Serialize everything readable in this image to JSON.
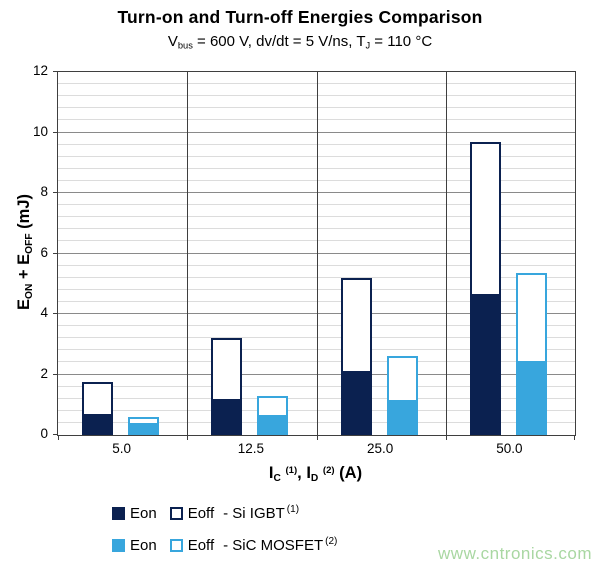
{
  "title": "Turn-on and Turn-off Energies Comparison",
  "subtitle": {
    "p1": "V",
    "sub1": "bus",
    "p2": " = 600 V, dv/dt = 5 V/ns, T",
    "sub2": "J",
    "p3": " = 110 °C"
  },
  "y_axis": {
    "title": {
      "p1": "E",
      "sub1": "ON",
      "p2": " + E",
      "sub2": "OFF",
      "p3": " (mJ)"
    }
  },
  "x_axis": {
    "title": {
      "p1": "I",
      "sub1": "C",
      "sup1": "(1)",
      "p2": ", I",
      "sub2": "D",
      "sup2": "(2)",
      "p3": " (A)"
    }
  },
  "legend": {
    "rows": [
      {
        "eon": "Eon",
        "eoff": "Eoff",
        "device": "- Si IGBT",
        "sup": "(1)"
      },
      {
        "eon": "Eon",
        "eoff": "Eoff",
        "device": "- SiC MOSFET",
        "sup": "(2)"
      }
    ]
  },
  "watermark": "www.cntronics.com",
  "colors": {
    "navy": "#0b2150",
    "blue": "#38a6dd",
    "major_grid": "#8a8a8a",
    "minor_grid": "#dcdcdc",
    "frame": "#3f3f3f",
    "watermark_green": "#a9d7a2"
  },
  "chart_data": {
    "type": "bar",
    "subtype": "grouped-stacked",
    "title": "Turn-on and Turn-off Energies Comparison",
    "subtitle_text": "Vbus = 600 V, dv/dt = 5 V/ns, TJ = 110 °C",
    "xlabel": "IC (1), ID (2) (A)",
    "ylabel": "EON + EOFF (mJ)",
    "categories": [
      "5.0",
      "12.5",
      "25.0",
      "50.0"
    ],
    "x_values_A": [
      5.0,
      12.5,
      25.0,
      50.0
    ],
    "ylim": [
      0,
      12
    ],
    "y_major_unit": 2,
    "y_minor_unit": 0.4,
    "y_tick_labels": [
      "0",
      "2",
      "4",
      "6",
      "8",
      "10",
      "12"
    ],
    "grid": true,
    "legend_position": "bottom",
    "stacks": [
      {
        "name": "Si IGBT",
        "marker": "navy",
        "segments": [
          {
            "name": "Eon",
            "values": [
              0.7,
              1.2,
              2.1,
              4.65
            ]
          },
          {
            "name": "Eoff",
            "values": [
              1.05,
              2.0,
              3.1,
              5.05
            ]
          }
        ],
        "totals": [
          1.75,
          3.2,
          5.2,
          9.7
        ]
      },
      {
        "name": "SiC MOSFET",
        "marker": "blue",
        "segments": [
          {
            "name": "Eon",
            "values": [
              0.4,
              0.65,
              1.15,
              2.45
            ]
          },
          {
            "name": "Eoff",
            "values": [
              0.2,
              0.65,
              1.45,
              2.9
            ]
          }
        ],
        "totals": [
          0.6,
          1.3,
          2.6,
          5.35
        ]
      }
    ]
  }
}
